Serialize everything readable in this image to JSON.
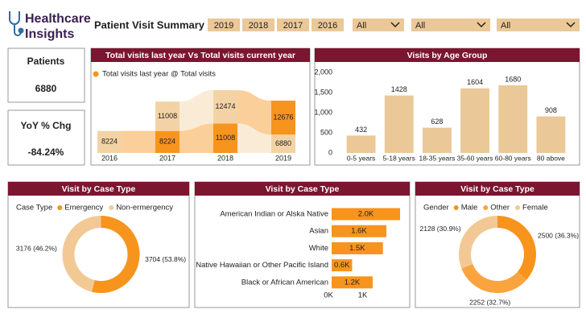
{
  "header": {
    "brand": [
      "Healthcare",
      "Insights"
    ],
    "title": "Patient Visit Summary",
    "years": [
      "2019",
      "2018",
      "2017",
      "2016"
    ],
    "filters": [
      "All",
      "All",
      "All"
    ]
  },
  "kpis": [
    {
      "label": "Patients",
      "value": "6880"
    },
    {
      "label": "YoY % Chg",
      "value": "-84.24%"
    }
  ],
  "chart_data": [
    {
      "type": "ribbon",
      "title": "Total visits last year Vs Total visits current year",
      "legend": {
        "label": "Total visits last year @ Total visits",
        "color": "#f7941d"
      },
      "categories": [
        "2016",
        "2017",
        "2018",
        "2019"
      ],
      "series": [
        {
          "values": [
            8224,
            8224,
            11008,
            6880
          ],
          "colors": [
            "#f3d3a5",
            "#f7941d",
            "#f7941d",
            "#f3d3a5"
          ]
        },
        {
          "values": [
            null,
            11008,
            12474,
            12676
          ],
          "colors": [
            null,
            "#f3d3a5",
            "#f3d3a5",
            "#f7941d"
          ]
        }
      ]
    },
    {
      "type": "bar",
      "title": "Visits by Age Group",
      "categories": [
        "0-5 years",
        "5-18 years",
        "18-35 years",
        "35-60 years",
        "60-80 years",
        "80 above"
      ],
      "values": [
        432,
        1428,
        628,
        1604,
        1680,
        908
      ],
      "color": "#ebc898",
      "ylim": [
        0,
        2000
      ],
      "yticks": [
        0,
        500,
        {
          "value": 1000,
          "label": "1,000"
        },
        {
          "value": 1500,
          "label": "1,500"
        },
        {
          "value": 2000,
          "label": "2,000"
        }
      ],
      "grid": false
    },
    {
      "type": "donut",
      "title": "Visit by Case Type",
      "legend_title": "Case Type",
      "categories": [
        "Emergency",
        "Non-ermergency"
      ],
      "values": [
        3704,
        3176
      ],
      "value_labels": [
        "3704 (53.8%)",
        "3176 (46.2%)"
      ],
      "colors": [
        "#f7941d",
        "#f2c994"
      ]
    },
    {
      "type": "hbar",
      "title": "Visit by Case Type",
      "categories": [
        "American Indian or Alska Native",
        "Asian",
        "White",
        "Native Hawaiian or Other Pacific Island",
        "Black or African American"
      ],
      "values": [
        2000,
        1600,
        1500,
        600,
        1200
      ],
      "value_labels": [
        "2.0K",
        "1.6K",
        "1.5K",
        "0.6K",
        "1.2K"
      ],
      "color": "#f7941d",
      "xlim": [
        0,
        2000
      ],
      "xticks": [
        {
          "value": 0,
          "label": "0K"
        },
        {
          "value": 1000,
          "label": "1K"
        }
      ]
    },
    {
      "type": "donut",
      "title": "Visit by Case Type",
      "legend_title": "Gender",
      "categories": [
        "Male",
        "Other",
        "Female"
      ],
      "values": [
        2500,
        2252,
        2128
      ],
      "value_labels": [
        "2500 (36.3%)",
        "2252 (32.7%)",
        "2128 (30.9%)"
      ],
      "colors": [
        "#f7941d",
        "#f9a43f",
        "#f2c994"
      ]
    }
  ]
}
